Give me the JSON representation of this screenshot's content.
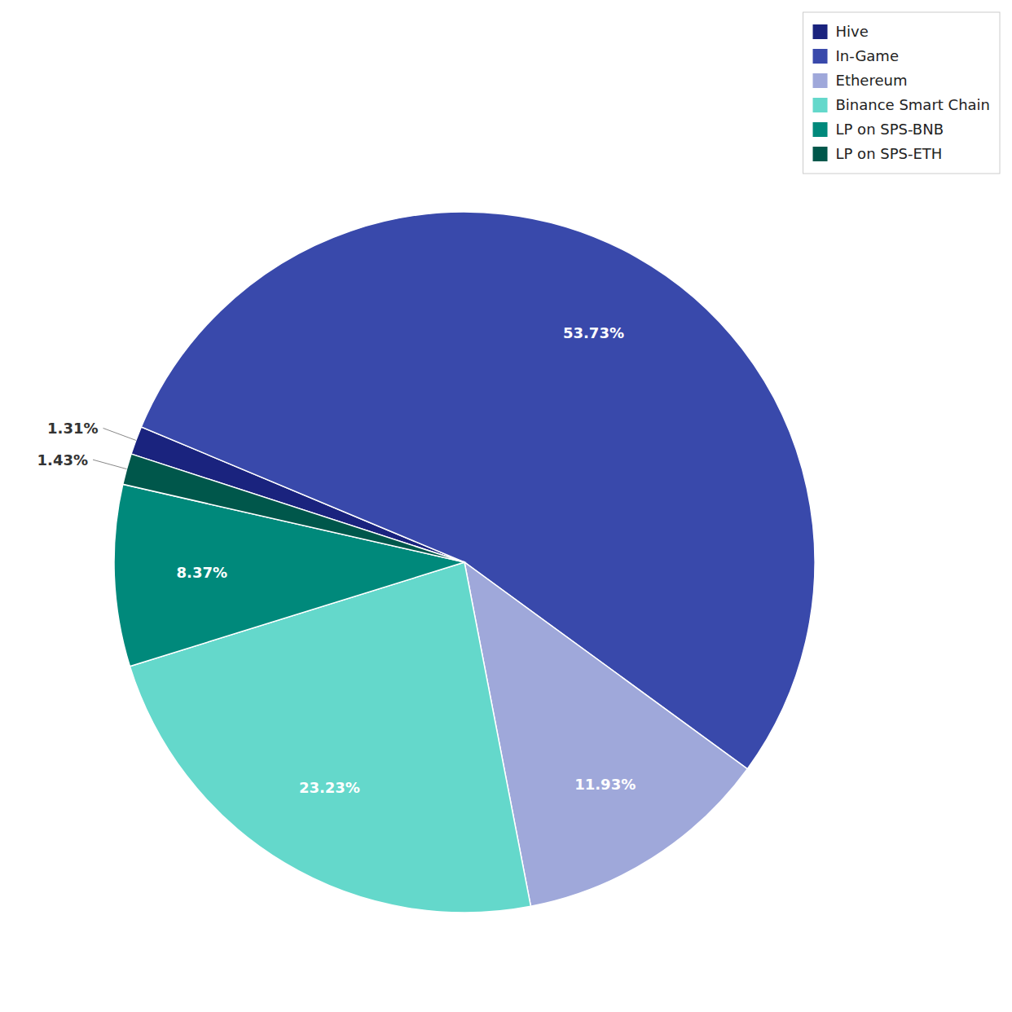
{
  "chart_data": {
    "type": "pie",
    "categories": [
      "Hive",
      "In-Game",
      "Ethereum",
      "Binance Smart Chain",
      "LP on SPS-BNB",
      "LP on SPS-ETH"
    ],
    "values": [
      1.31,
      53.73,
      11.93,
      23.23,
      8.37,
      1.43
    ],
    "value_labels": [
      "1.31%",
      "53.73%",
      "11.93%",
      "23.23%",
      "8.37%",
      "1.43%"
    ],
    "colors": [
      "#1a237e",
      "#3949ab",
      "#9fa8da",
      "#64d8cb",
      "#00897b",
      "#00574b"
    ],
    "data_labels": true,
    "legend": "upper right"
  }
}
